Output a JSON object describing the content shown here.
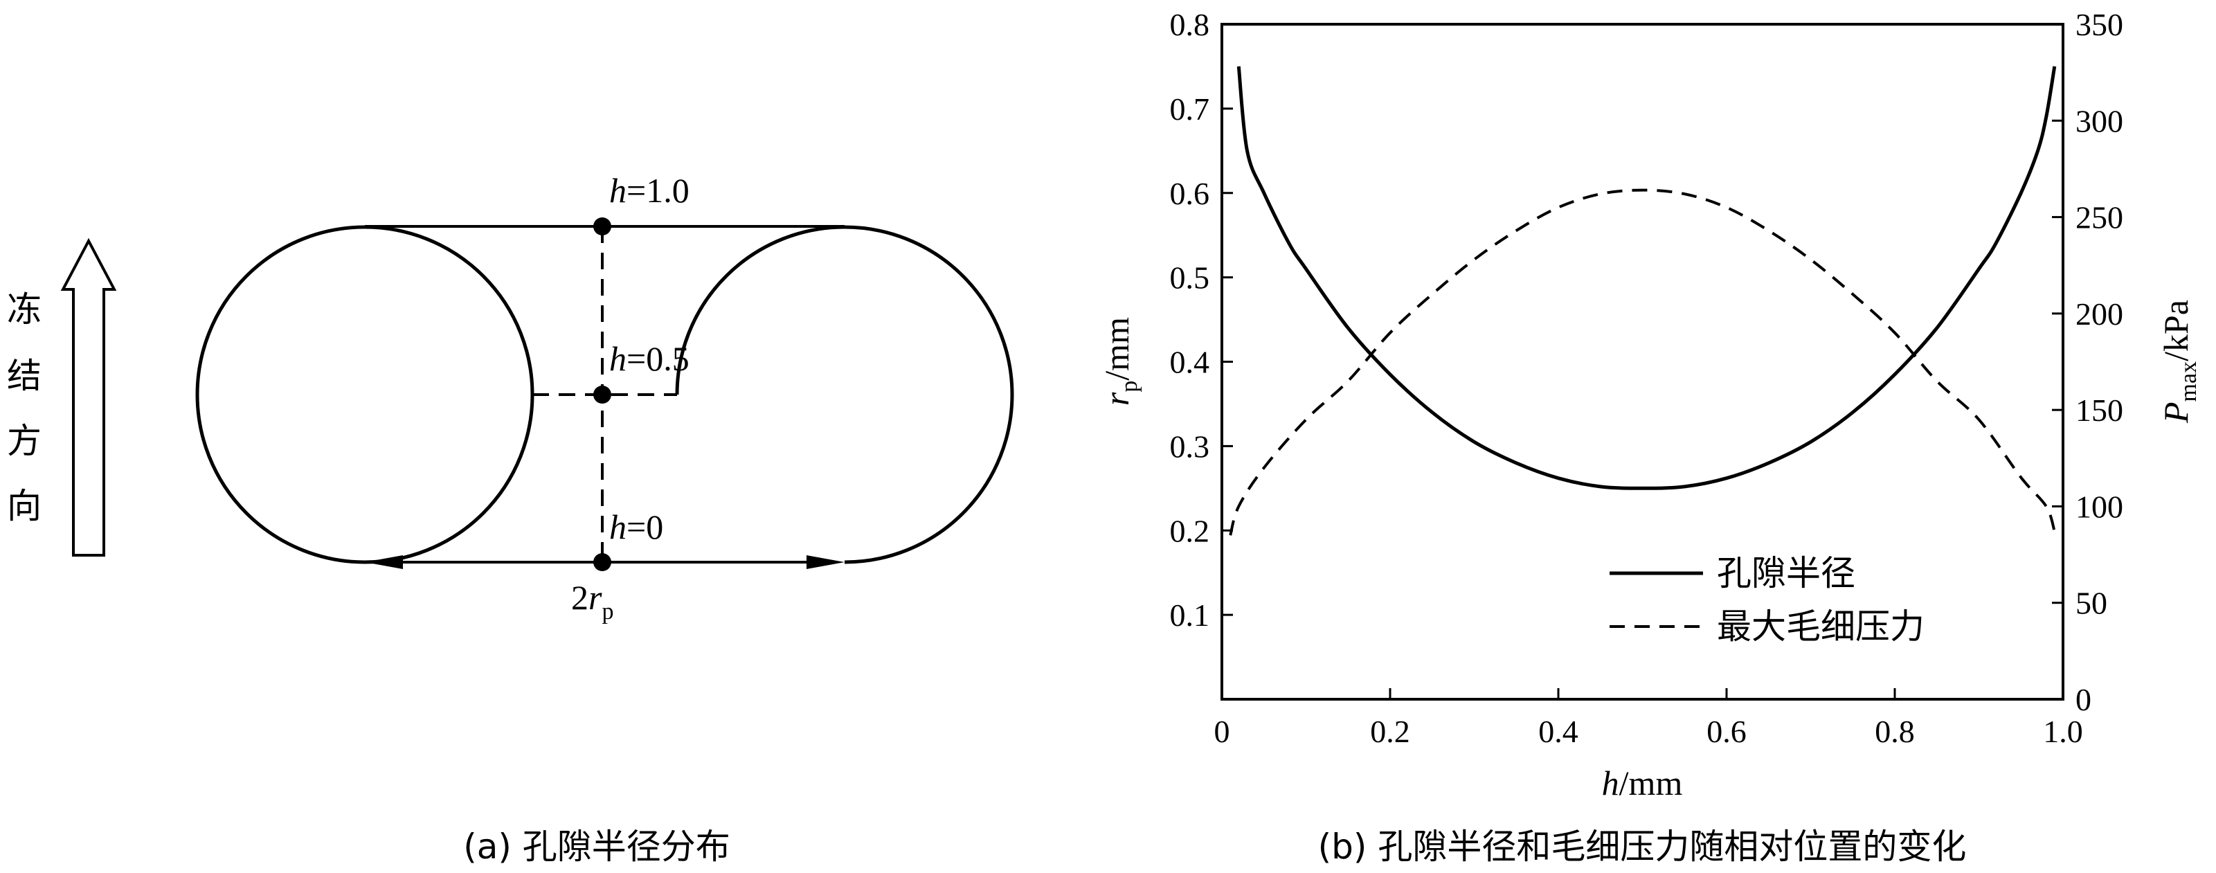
{
  "panel_a": {
    "caption": "(a) 孔隙半径分布",
    "direction_label": [
      "冻",
      "结",
      "方",
      "向"
    ],
    "h_top_var": "h",
    "h_top_val": "=1.0",
    "h_mid_var": "h",
    "h_mid_val": "=0.5",
    "h_bot_var": "h",
    "h_bot_val": "=0",
    "diameter_coef": "2",
    "diameter_var": "r",
    "diameter_sub": "p"
  },
  "panel_b": {
    "caption": "(b) 孔隙半径和毛细压力随相对位置的变化",
    "legend_radius": "孔隙半径",
    "legend_pressure": "最大毛细压力"
  },
  "chart_data": {
    "type": "line",
    "xlabel_var": "h",
    "xlabel_unit": "/mm",
    "ylabel_left_var": "r",
    "ylabel_left_sub": "p",
    "ylabel_left_unit": "/mm",
    "ylabel_right_var": "P",
    "ylabel_right_sub": "max",
    "ylabel_right_unit": "/kPa",
    "xlim": [
      0,
      1.0
    ],
    "ylim_left": [
      0,
      0.8
    ],
    "ylim_right": [
      0,
      350
    ],
    "x_ticks": [
      "0",
      "0.2",
      "0.4",
      "0.6",
      "0.8",
      "1.0"
    ],
    "y_left_ticks": [
      "0.1",
      "0.2",
      "0.3",
      "0.4",
      "0.5",
      "0.6",
      "0.7",
      "0.8"
    ],
    "y_right_ticks": [
      "0",
      "50",
      "100",
      "150",
      "200",
      "250",
      "300",
      "350"
    ],
    "grid": false,
    "legend_position": "lower-right",
    "series": [
      {
        "name": "孔隙半径",
        "axis": "left",
        "style": "solid",
        "x": [
          0.02,
          0.03,
          0.05,
          0.08,
          0.1,
          0.15,
          0.2,
          0.25,
          0.3,
          0.35,
          0.4,
          0.45,
          0.5,
          0.55,
          0.6,
          0.65,
          0.7,
          0.75,
          0.8,
          0.85,
          0.9,
          0.92,
          0.95,
          0.97,
          0.98,
          0.99
        ],
        "y": [
          0.75,
          0.65,
          0.6,
          0.54,
          0.51,
          0.44,
          0.385,
          0.34,
          0.305,
          0.28,
          0.262,
          0.252,
          0.25,
          0.252,
          0.262,
          0.28,
          0.305,
          0.34,
          0.385,
          0.44,
          0.51,
          0.54,
          0.6,
          0.65,
          0.69,
          0.75
        ]
      },
      {
        "name": "最大毛细压力",
        "axis": "right",
        "style": "dashed",
        "x": [
          0.01,
          0.02,
          0.05,
          0.1,
          0.15,
          0.2,
          0.25,
          0.3,
          0.35,
          0.4,
          0.45,
          0.5,
          0.55,
          0.6,
          0.65,
          0.7,
          0.75,
          0.8,
          0.85,
          0.9,
          0.95,
          0.98,
          0.99
        ],
        "y": [
          85,
          100,
          120,
          145,
          165,
          190,
          210,
          228,
          243,
          255,
          262,
          264,
          262,
          255,
          243,
          228,
          210,
          190,
          165,
          145,
          115,
          100,
          87
        ]
      }
    ]
  }
}
